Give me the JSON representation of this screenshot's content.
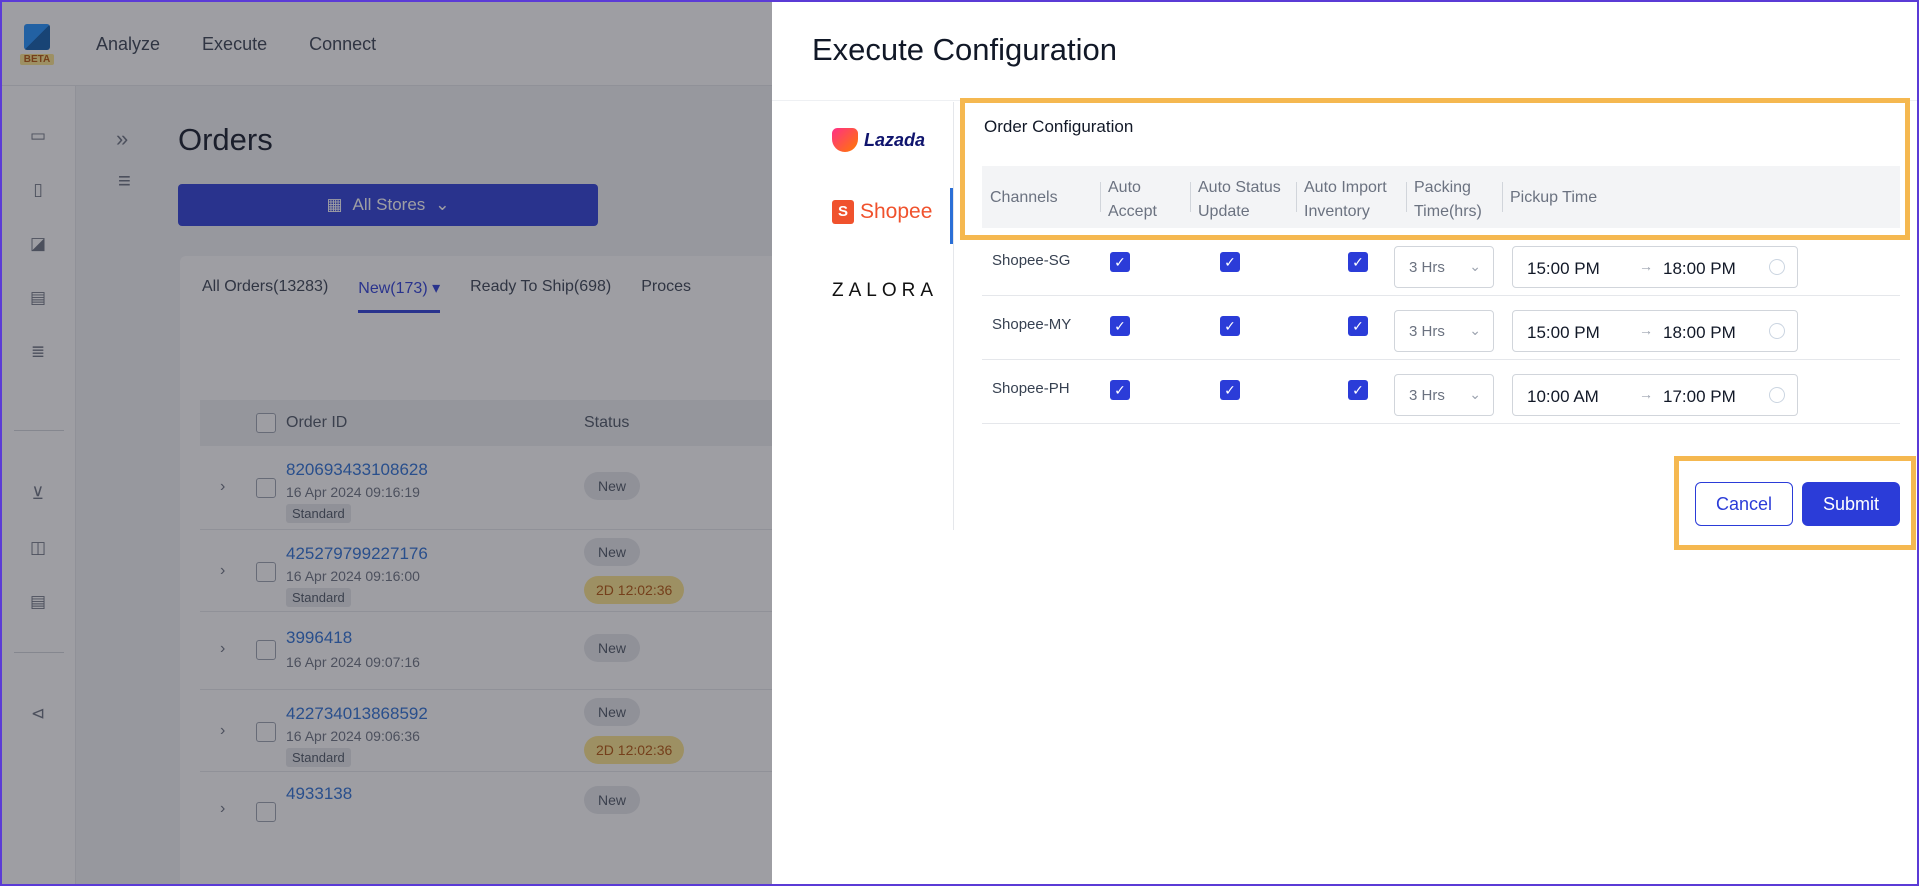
{
  "app": {
    "beta_label": "BETA",
    "nav": [
      "Analyze",
      "Execute",
      "Connect"
    ]
  },
  "orders": {
    "title": "Orders",
    "store_selector": "All Stores",
    "tabs": [
      "All Orders(13283)",
      "New(173)",
      "Ready To Ship(698)",
      "Proces"
    ],
    "columns": {
      "order_id": "Order ID",
      "status": "Status"
    },
    "rows": [
      {
        "id": "820693433108628",
        "date": "16 Apr 2024 09:16:19",
        "tag": "Standard",
        "status": "New",
        "timer": ""
      },
      {
        "id": "425279799227176",
        "date": "16 Apr 2024 09:16:00",
        "tag": "Standard",
        "status": "New",
        "timer": "2D 12:02:36"
      },
      {
        "id": "3996418",
        "date": "16 Apr 2024 09:07:16",
        "tag": "",
        "status": "New",
        "timer": ""
      },
      {
        "id": "422734013868592",
        "date": "16 Apr 2024 09:06:36",
        "tag": "Standard",
        "status": "New",
        "timer": "2D 12:02:36"
      },
      {
        "id": "4933138",
        "date": "",
        "tag": "",
        "status": "New",
        "timer": ""
      }
    ]
  },
  "drawer": {
    "title": "Execute Configuration",
    "channels": [
      "Lazada",
      "Shopee",
      "ZALORA"
    ],
    "section_title": "Order Configuration",
    "headers": {
      "channels": "Channels",
      "auto_accept": "Auto Accept",
      "auto_status_update": "Auto Status Update",
      "auto_import_inventory": "Auto Import Inventory",
      "packing_time": "Packing Time(hrs)",
      "pickup_time": "Pickup Time"
    },
    "rows": [
      {
        "channel": "Shopee-SG",
        "auto_accept": true,
        "auto_status_update": true,
        "auto_import_inventory": true,
        "packing": "3 Hrs",
        "pickup_start": "15:00 PM",
        "pickup_end": "18:00 PM"
      },
      {
        "channel": "Shopee-MY",
        "auto_accept": true,
        "auto_status_update": true,
        "auto_import_inventory": true,
        "packing": "3 Hrs",
        "pickup_start": "15:00 PM",
        "pickup_end": "18:00 PM"
      },
      {
        "channel": "Shopee-PH",
        "auto_accept": true,
        "auto_status_update": true,
        "auto_import_inventory": true,
        "packing": "3 Hrs",
        "pickup_start": "10:00 AM",
        "pickup_end": "17:00 PM"
      }
    ],
    "cancel_label": "Cancel",
    "submit_label": "Submit"
  },
  "colors": {
    "accent": "#2b3cd8",
    "highlight": "#f5b850",
    "shopee": "#f0522d"
  },
  "icons": [
    "help-lifebuoy-icon",
    "check-icon",
    "clock-icon",
    "chevron-down-icon",
    "store-icon"
  ]
}
